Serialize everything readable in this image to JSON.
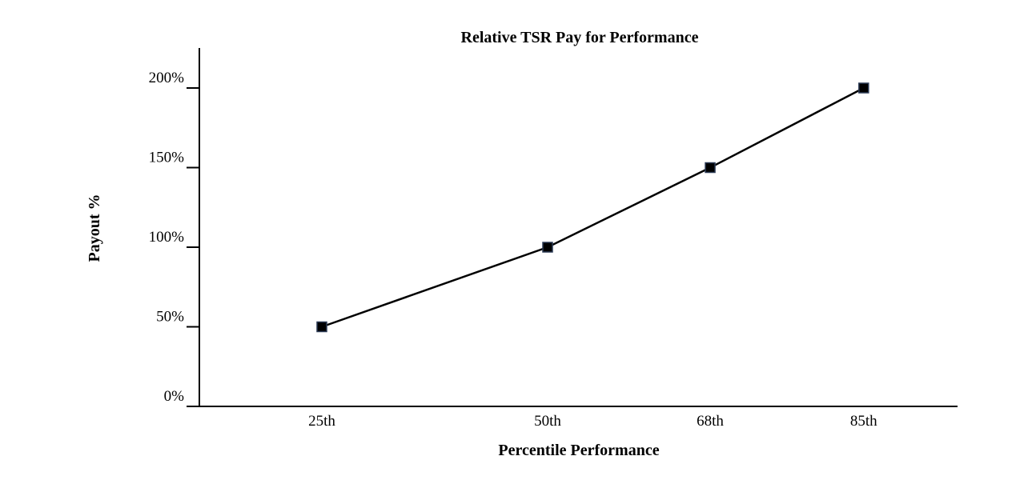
{
  "chart_data": {
    "type": "line",
    "title": "Relative TSR Pay for Performance",
    "xlabel": "Percentile Performance",
    "ylabel": "Payout %",
    "x_categories": [
      "25th",
      "50th",
      "68th",
      "85th"
    ],
    "x_values": [
      25,
      50,
      68,
      85
    ],
    "series": [
      {
        "values": [
          50,
          100,
          150,
          200
        ],
        "color": "#000000",
        "marker": "square"
      }
    ],
    "y_ticks": [
      "0%",
      "50%",
      "100%",
      "150%",
      "200%"
    ],
    "y_tick_values": [
      0,
      50,
      100,
      150,
      200
    ],
    "xlim": [
      0,
      100
    ],
    "ylim": [
      0,
      225
    ],
    "grid": false,
    "legend": "none",
    "colors": {
      "line": "#000000",
      "marker": "#000000",
      "marker_border": "#2b3a55",
      "axis": "#000000"
    }
  }
}
